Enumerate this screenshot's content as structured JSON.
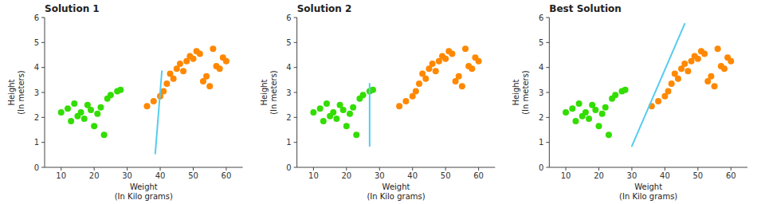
{
  "chart_data": [
    {
      "type": "scatter",
      "title": "Solution 1",
      "x_label": "Weight\n(In Kilo grams)",
      "y_label": "Height\n(In meters)",
      "xlim": [
        5,
        65
      ],
      "ylim": [
        0,
        6
      ],
      "xticks": [
        10,
        20,
        30,
        40,
        50,
        60
      ],
      "yticks": [
        0,
        1,
        2,
        3,
        4,
        5,
        6
      ],
      "series": [
        {
          "color": "#33dd00",
          "x": [
            10,
            12,
            13,
            14,
            15,
            16,
            17,
            18,
            19,
            20,
            21,
            22,
            23,
            24,
            25,
            27,
            28
          ],
          "values": [
            2.2,
            2.35,
            1.85,
            2.55,
            2.05,
            2.2,
            1.95,
            2.5,
            2.3,
            1.65,
            2.15,
            2.4,
            1.3,
            2.75,
            2.9,
            3.05,
            3.1
          ]
        },
        {
          "color": "#ff8800",
          "x": [
            36,
            38,
            40,
            41,
            42,
            43,
            44,
            45,
            46,
            47,
            48,
            49,
            50,
            51,
            52,
            53,
            54,
            55,
            56,
            57,
            58,
            59,
            60
          ],
          "values": [
            2.45,
            2.65,
            2.85,
            3.05,
            3.35,
            3.75,
            3.55,
            3.95,
            4.15,
            3.85,
            4.25,
            4.45,
            4.35,
            4.65,
            4.55,
            3.45,
            3.65,
            3.25,
            4.75,
            4.05,
            3.95,
            4.4,
            4.25
          ]
        },
        {
          "type": "line",
          "color": "#55ccee",
          "x": [
            38.5,
            40.5
          ],
          "values": [
            0.55,
            3.85
          ]
        }
      ]
    },
    {
      "type": "scatter",
      "title": "Solution 2",
      "x_label": "Weight\n(In Kilo grams)",
      "y_label": "Height\n(In meters)",
      "xlim": [
        5,
        65
      ],
      "ylim": [
        0,
        6
      ],
      "xticks": [
        10,
        20,
        30,
        40,
        50,
        60
      ],
      "yticks": [
        0,
        1,
        2,
        3,
        4,
        5,
        6
      ],
      "series": [
        {
          "color": "#33dd00",
          "x": [
            10,
            12,
            13,
            14,
            15,
            16,
            17,
            18,
            19,
            20,
            21,
            22,
            23,
            24,
            25,
            27,
            28
          ],
          "values": [
            2.2,
            2.35,
            1.85,
            2.55,
            2.05,
            2.2,
            1.95,
            2.5,
            2.3,
            1.65,
            2.15,
            2.4,
            1.3,
            2.75,
            2.9,
            3.05,
            3.1
          ]
        },
        {
          "color": "#ff8800",
          "x": [
            36,
            38,
            40,
            41,
            42,
            43,
            44,
            45,
            46,
            47,
            48,
            49,
            50,
            51,
            52,
            53,
            54,
            55,
            56,
            57,
            58,
            59,
            60
          ],
          "values": [
            2.45,
            2.65,
            2.85,
            3.05,
            3.35,
            3.75,
            3.55,
            3.95,
            4.15,
            3.85,
            4.25,
            4.45,
            4.35,
            4.65,
            4.55,
            3.45,
            3.65,
            3.25,
            4.75,
            4.05,
            3.95,
            4.4,
            4.25
          ]
        },
        {
          "type": "line",
          "color": "#55ccee",
          "x": [
            27,
            27
          ],
          "values": [
            0.85,
            3.35
          ]
        }
      ]
    },
    {
      "type": "scatter",
      "title": "Best Solution",
      "x_label": "Weight\n(In Kilo grams)",
      "y_label": "Height\n(In meters)",
      "xlim": [
        5,
        65
      ],
      "ylim": [
        0,
        6
      ],
      "xticks": [
        10,
        20,
        30,
        40,
        50,
        60
      ],
      "yticks": [
        0,
        1,
        2,
        3,
        4,
        5,
        6
      ],
      "series": [
        {
          "color": "#33dd00",
          "x": [
            10,
            12,
            13,
            14,
            15,
            16,
            17,
            18,
            19,
            20,
            21,
            22,
            23,
            24,
            25,
            27,
            28
          ],
          "values": [
            2.2,
            2.35,
            1.85,
            2.55,
            2.05,
            2.2,
            1.95,
            2.5,
            2.3,
            1.65,
            2.15,
            2.4,
            1.3,
            2.75,
            2.9,
            3.05,
            3.1
          ]
        },
        {
          "color": "#ff8800",
          "x": [
            36,
            38,
            40,
            41,
            42,
            43,
            44,
            45,
            46,
            47,
            48,
            49,
            50,
            51,
            52,
            53,
            54,
            55,
            56,
            57,
            58,
            59,
            60
          ],
          "values": [
            2.45,
            2.65,
            2.85,
            3.05,
            3.35,
            3.75,
            3.55,
            3.95,
            4.15,
            3.85,
            4.25,
            4.45,
            4.35,
            4.65,
            4.55,
            3.45,
            3.65,
            3.25,
            4.75,
            4.05,
            3.95,
            4.4,
            4.25
          ]
        },
        {
          "type": "line",
          "color": "#55ccee",
          "x": [
            30,
            46
          ],
          "values": [
            0.85,
            5.75
          ]
        }
      ]
    }
  ]
}
